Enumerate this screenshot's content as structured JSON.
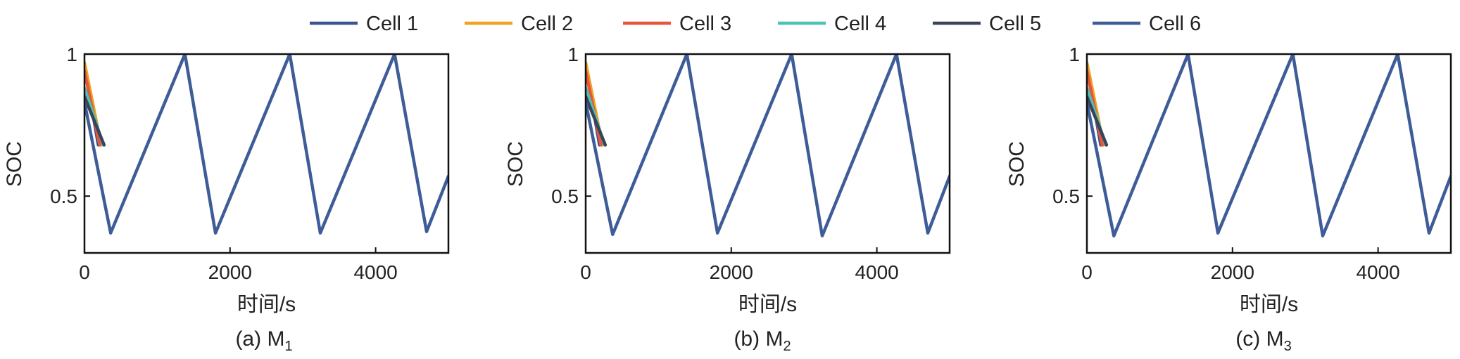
{
  "legend": [
    {
      "name": "Cell 1",
      "color": "#3B5493"
    },
    {
      "name": "Cell 2",
      "color": "#EFA321"
    },
    {
      "name": "Cell 3",
      "color": "#E5563B"
    },
    {
      "name": "Cell 4",
      "color": "#4CC2B6"
    },
    {
      "name": "Cell 5",
      "color": "#3A4458"
    },
    {
      "name": "Cell 6",
      "color": "#3E5C97"
    }
  ],
  "chart_data": [
    {
      "type": "line",
      "caption": "(a) M",
      "caption_sub": "1",
      "xlabel": "时间/s",
      "ylabel": "SOC",
      "xlim": [
        0,
        5000
      ],
      "ylim": [
        0.3,
        1.0
      ],
      "xticks": [
        0,
        2000,
        4000
      ],
      "xtick_labels": [
        "0",
        "2000",
        "4000"
      ],
      "yticks": [
        0.5,
        1.0
      ],
      "ytick_labels": [
        "0.5",
        "1"
      ],
      "grid": false,
      "series": [
        {
          "name": "Cell 1",
          "x": [
            0,
            190
          ],
          "y": [
            0.96,
            0.68
          ]
        },
        {
          "name": "Cell 2",
          "x": [
            0,
            230
          ],
          "y": [
            0.97,
            0.68
          ]
        },
        {
          "name": "Cell 3",
          "x": [
            0,
            210
          ],
          "y": [
            0.94,
            0.68
          ]
        },
        {
          "name": "Cell 4",
          "x": [
            0,
            260
          ],
          "y": [
            0.88,
            0.68
          ]
        },
        {
          "name": "Cell 5",
          "x": [
            0,
            270
          ],
          "y": [
            0.85,
            0.68
          ]
        },
        {
          "name": "Cell 6",
          "x": [
            0,
            360,
            1380,
            1800,
            2820,
            3240,
            4260,
            4700,
            5000
          ],
          "y": [
            0.83,
            0.37,
            1.0,
            0.37,
            1.0,
            0.37,
            1.0,
            0.375,
            0.57
          ]
        }
      ]
    },
    {
      "type": "line",
      "caption": "(b) M",
      "caption_sub": "2",
      "xlabel": "时间/s",
      "ylabel": "SOC",
      "xlim": [
        0,
        5000
      ],
      "ylim": [
        0.3,
        1.0
      ],
      "xticks": [
        0,
        2000,
        4000
      ],
      "xtick_labels": [
        "0",
        "2000",
        "4000"
      ],
      "yticks": [
        0.5,
        1.0
      ],
      "ytick_labels": [
        "0.5",
        "1"
      ],
      "grid": false,
      "series": [
        {
          "name": "Cell 1",
          "x": [
            0,
            190
          ],
          "y": [
            0.96,
            0.68
          ]
        },
        {
          "name": "Cell 2",
          "x": [
            0,
            230
          ],
          "y": [
            0.97,
            0.68
          ]
        },
        {
          "name": "Cell 3",
          "x": [
            0,
            210
          ],
          "y": [
            0.94,
            0.68
          ]
        },
        {
          "name": "Cell 4",
          "x": [
            0,
            260
          ],
          "y": [
            0.88,
            0.68
          ]
        },
        {
          "name": "Cell 5",
          "x": [
            0,
            270
          ],
          "y": [
            0.85,
            0.68
          ]
        },
        {
          "name": "Cell 6",
          "x": [
            0,
            370,
            1390,
            1810,
            2830,
            3250,
            4270,
            4700,
            5000
          ],
          "y": [
            0.83,
            0.365,
            1.0,
            0.37,
            1.0,
            0.36,
            1.0,
            0.37,
            0.57
          ]
        }
      ]
    },
    {
      "type": "line",
      "caption": "(c) M",
      "caption_sub": "3",
      "xlabel": "时间/s",
      "ylabel": "SOC",
      "xlim": [
        0,
        5000
      ],
      "ylim": [
        0.3,
        1.0
      ],
      "xticks": [
        0,
        2000,
        4000
      ],
      "xtick_labels": [
        "0",
        "2000",
        "4000"
      ],
      "yticks": [
        0.5,
        1.0
      ],
      "ytick_labels": [
        "0.5",
        "1"
      ],
      "grid": false,
      "series": [
        {
          "name": "Cell 1",
          "x": [
            0,
            190
          ],
          "y": [
            0.96,
            0.68
          ]
        },
        {
          "name": "Cell 2",
          "x": [
            0,
            230
          ],
          "y": [
            0.97,
            0.68
          ]
        },
        {
          "name": "Cell 3",
          "x": [
            0,
            210
          ],
          "y": [
            0.94,
            0.68
          ]
        },
        {
          "name": "Cell 4",
          "x": [
            0,
            260
          ],
          "y": [
            0.88,
            0.68
          ]
        },
        {
          "name": "Cell 5",
          "x": [
            0,
            270
          ],
          "y": [
            0.85,
            0.68
          ]
        },
        {
          "name": "Cell 6",
          "x": [
            0,
            370,
            1390,
            1800,
            2830,
            3240,
            4270,
            4700,
            5000
          ],
          "y": [
            0.83,
            0.36,
            1.0,
            0.37,
            1.0,
            0.36,
            1.0,
            0.37,
            0.57
          ]
        }
      ]
    }
  ]
}
